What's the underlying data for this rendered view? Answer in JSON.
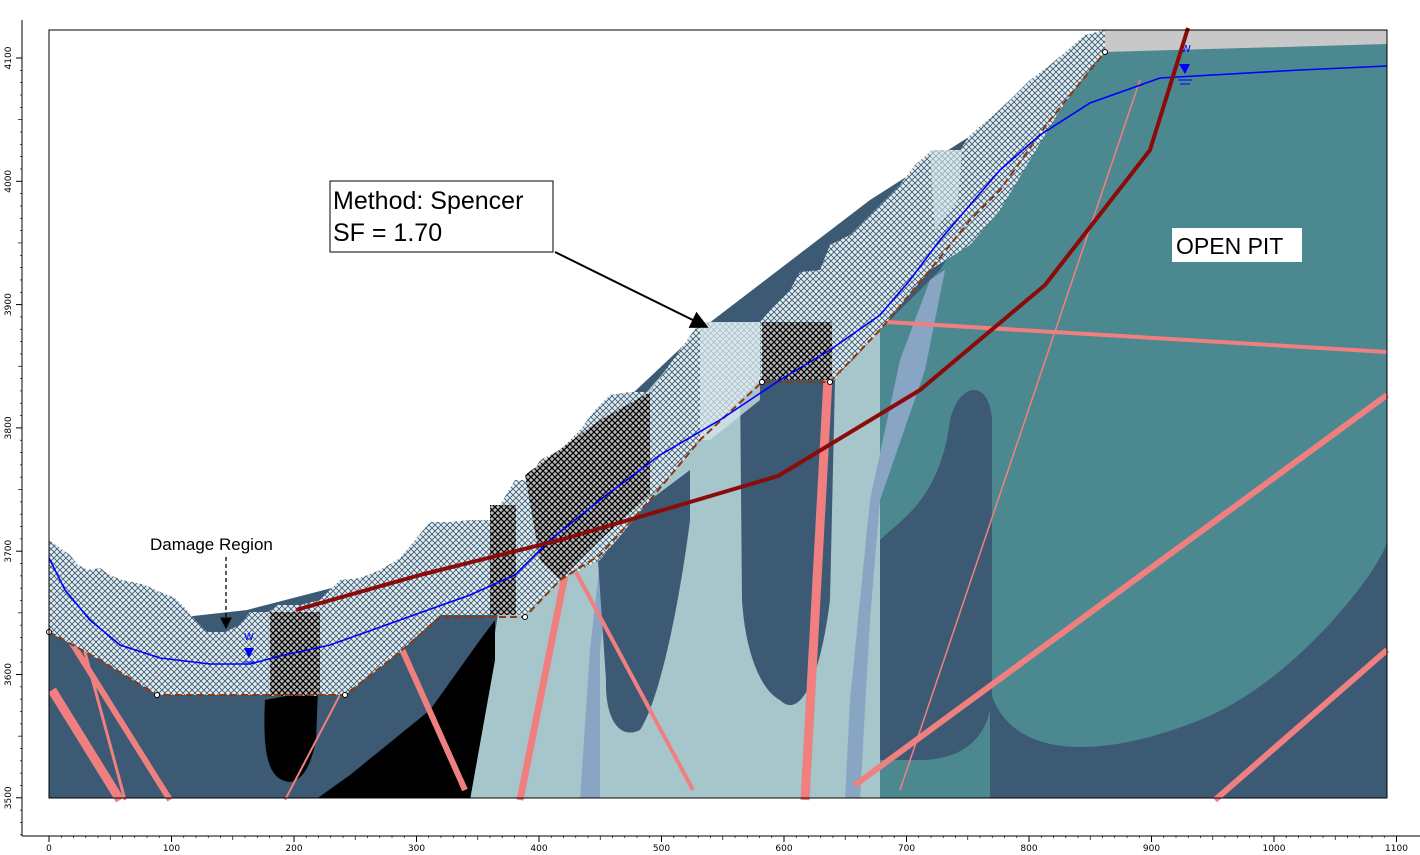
{
  "app": {
    "method_label": "Method: Spencer",
    "sf_label": "SF = 1.70",
    "region_label": "OPEN PIT",
    "damage_label": "Damage Region",
    "water_marker": "W"
  },
  "axes": {
    "x_ticks": [
      "0",
      "100",
      "200",
      "300",
      "400",
      "500",
      "600",
      "700",
      "800",
      "900",
      "1000",
      "1100"
    ],
    "y_ticks": [
      "4100",
      "4000",
      "3900",
      "3800",
      "3700",
      "3600",
      "3500"
    ]
  },
  "colors": {
    "sky": "#ffffff",
    "unit_dark": "#3c5a74",
    "unit_light": "#a6c6cc",
    "unit_teal": "#4c8890",
    "unit_blue": "#88a6c4",
    "black": "#000000",
    "fault": "#f08080",
    "slip_surface": "#8b0a0a",
    "water_table": "#0000ff",
    "damage_boundary": "#8b3a10",
    "top_cap": "#c8c8c8"
  }
}
